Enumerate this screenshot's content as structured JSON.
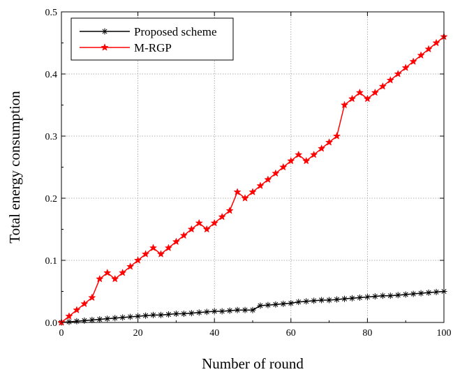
{
  "chart_data": {
    "type": "line",
    "title": "",
    "xlabel": "Number of round",
    "ylabel": "Total energy consumption",
    "xlim": [
      0,
      100
    ],
    "ylim": [
      0,
      0.5
    ],
    "xticks": [
      "0",
      "20",
      "40",
      "60",
      "80",
      "100"
    ],
    "yticks": [
      "0.0",
      "0.1",
      "0.2",
      "0.3",
      "0.4",
      "0.5"
    ],
    "grid": "dotted",
    "legend_position": "top-left",
    "x": [
      0,
      2,
      4,
      6,
      8,
      10,
      12,
      14,
      16,
      18,
      20,
      22,
      24,
      26,
      28,
      30,
      32,
      34,
      36,
      38,
      40,
      42,
      44,
      46,
      48,
      50,
      52,
      54,
      56,
      58,
      60,
      62,
      64,
      66,
      68,
      70,
      72,
      74,
      76,
      78,
      80,
      82,
      84,
      86,
      88,
      90,
      92,
      94,
      96,
      98,
      100
    ],
    "series": [
      {
        "name": "Proposed scheme",
        "color": "#000000",
        "marker": "asterisk",
        "values": [
          0.0,
          0.001,
          0.002,
          0.003,
          0.004,
          0.005,
          0.006,
          0.007,
          0.008,
          0.009,
          0.01,
          0.011,
          0.012,
          0.012,
          0.013,
          0.014,
          0.014,
          0.015,
          0.016,
          0.017,
          0.018,
          0.018,
          0.019,
          0.02,
          0.02,
          0.02,
          0.027,
          0.028,
          0.029,
          0.03,
          0.031,
          0.033,
          0.034,
          0.035,
          0.036,
          0.036,
          0.037,
          0.038,
          0.039,
          0.04,
          0.041,
          0.042,
          0.043,
          0.043,
          0.044,
          0.045,
          0.046,
          0.047,
          0.048,
          0.049,
          0.05
        ]
      },
      {
        "name": "M-RGP",
        "color": "#ff0000",
        "marker": "star",
        "values": [
          0.0,
          0.01,
          0.02,
          0.03,
          0.04,
          0.07,
          0.08,
          0.07,
          0.08,
          0.09,
          0.1,
          0.11,
          0.12,
          0.11,
          0.12,
          0.13,
          0.14,
          0.15,
          0.16,
          0.15,
          0.16,
          0.17,
          0.18,
          0.21,
          0.2,
          0.21,
          0.22,
          0.23,
          0.24,
          0.25,
          0.26,
          0.27,
          0.26,
          0.27,
          0.28,
          0.29,
          0.3,
          0.35,
          0.36,
          0.37,
          0.36,
          0.37,
          0.38,
          0.39,
          0.4,
          0.41,
          0.42,
          0.43,
          0.44,
          0.45,
          0.46
        ]
      }
    ]
  }
}
